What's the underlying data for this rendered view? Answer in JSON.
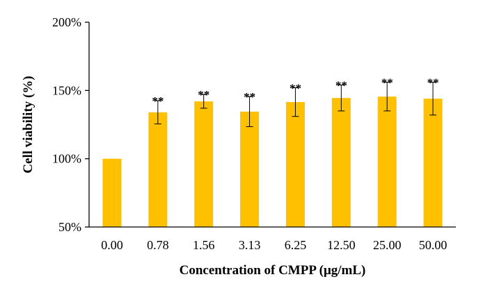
{
  "chart_data": {
    "type": "bar",
    "categories": [
      "0.00",
      "0.78",
      "1.56",
      "3.13",
      "6.25",
      "12.50",
      "25.00",
      "50.00"
    ],
    "values": [
      100,
      134,
      142,
      134.5,
      141.5,
      144.5,
      145.5,
      144
    ],
    "errors": [
      0,
      8.5,
      5,
      11,
      10.5,
      9.5,
      10.5,
      12
    ],
    "annotations": [
      "",
      "**",
      "**",
      "**",
      "**",
      "**",
      "**",
      "**"
    ],
    "xlabel": "Concentration of CMPP  (μg/mL)",
    "ylabel": "Cell viability (%)",
    "ylim": [
      50,
      200
    ],
    "yticks": [
      50,
      100,
      150,
      200
    ],
    "ytick_labels": [
      "50%",
      "100%",
      "150%",
      "200%"
    ],
    "grid": false,
    "bar_color": "#FFC000"
  }
}
